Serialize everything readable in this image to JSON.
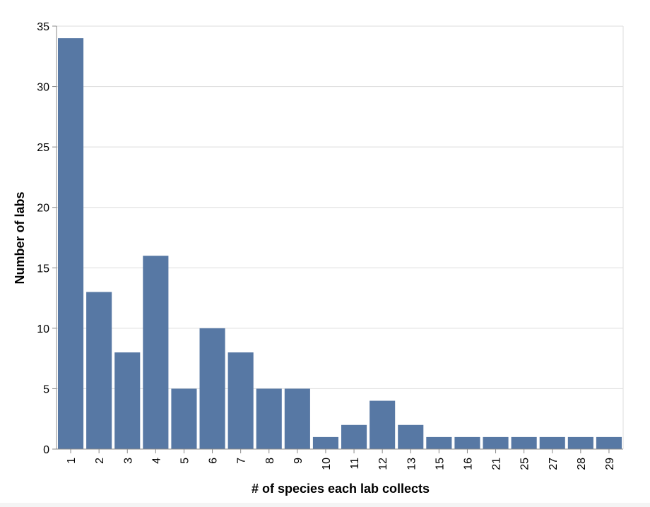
{
  "chart_data": {
    "type": "bar",
    "categories": [
      "1",
      "2",
      "3",
      "4",
      "5",
      "6",
      "7",
      "8",
      "9",
      "10",
      "11",
      "12",
      "13",
      "15",
      "16",
      "21",
      "25",
      "27",
      "28",
      "29"
    ],
    "values": [
      34,
      13,
      8,
      16,
      5,
      10,
      8,
      5,
      5,
      1,
      2,
      4,
      2,
      1,
      1,
      1,
      1,
      1,
      1,
      1
    ],
    "title": "",
    "xlabel": "# of species each lab collects",
    "ylabel": "Number of labs",
    "ylim": [
      0,
      35
    ],
    "yticks": [
      0,
      5,
      10,
      15,
      20,
      25,
      30,
      35
    ],
    "grid": true,
    "bar_color": "#5778a4",
    "grid_color": "#dddddd",
    "axis_color": "#888888"
  }
}
